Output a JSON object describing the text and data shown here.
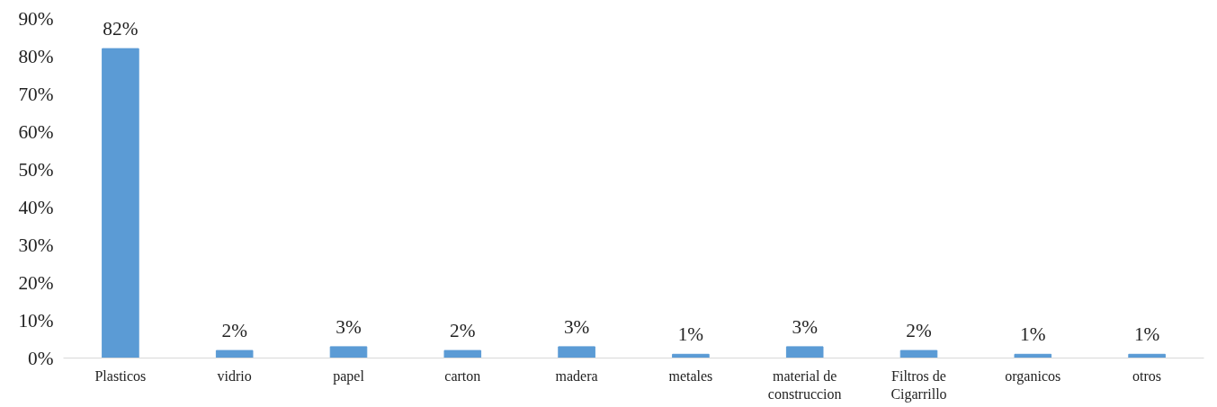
{
  "chart_data": {
    "type": "bar",
    "categories": [
      "Plasticos",
      "vidrio",
      "papel",
      "carton",
      "madera",
      "metales",
      "material de construccion",
      "Filtros de Cigarrillo",
      "organicos",
      "otros"
    ],
    "values": [
      82,
      2,
      3,
      2,
      3,
      1,
      3,
      2,
      1,
      1
    ],
    "value_labels": [
      "82%",
      "2%",
      "3%",
      "2%",
      "3%",
      "1%",
      "3%",
      "2%",
      "1%",
      "1%"
    ],
    "color": "#5b9bd5",
    "ylim": [
      0,
      90
    ],
    "yticks": [
      {
        "value": 0,
        "label": "0%"
      },
      {
        "value": 10,
        "label": "10%"
      },
      {
        "value": 20,
        "label": "20%"
      },
      {
        "value": 30,
        "label": "30%"
      },
      {
        "value": 40,
        "label": "40%"
      },
      {
        "value": 50,
        "label": "50%"
      },
      {
        "value": 60,
        "label": "60%"
      },
      {
        "value": 70,
        "label": "70%"
      },
      {
        "value": 80,
        "label": "80%"
      },
      {
        "value": 90,
        "label": "90%"
      }
    ],
    "grid": false
  }
}
